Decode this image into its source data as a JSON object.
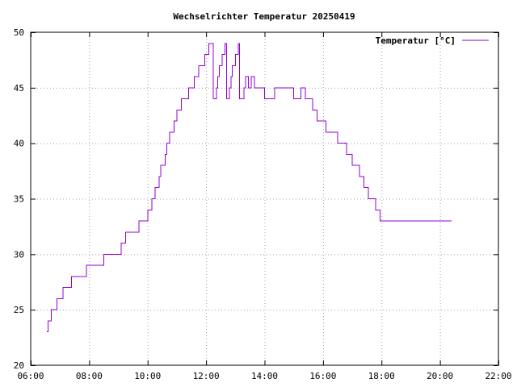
{
  "colors": {
    "series": "#9400d3",
    "grid": "#a0a0a0",
    "axis": "#000000"
  },
  "chart_data": {
    "type": "line",
    "title": "Wechselrichter Temperatur 20250419",
    "xlabel": "",
    "ylabel": "",
    "x_unit": "time of day (hours)",
    "xlim": [
      6,
      22
    ],
    "ylim": [
      20,
      50
    ],
    "x_ticks": [
      6,
      8,
      10,
      12,
      14,
      16,
      18,
      20,
      22
    ],
    "x_tick_labels": [
      "06:00",
      "08:00",
      "10:00",
      "12:00",
      "14:00",
      "16:00",
      "18:00",
      "20:00",
      "22:00"
    ],
    "y_ticks": [
      20,
      25,
      30,
      35,
      40,
      45,
      50
    ],
    "y_tick_labels": [
      "20",
      "25",
      "30",
      "35",
      "40",
      "45",
      "50"
    ],
    "grid": true,
    "legend_position": "top-right",
    "series": [
      {
        "name": "Temperatur [°C]",
        "step": true,
        "x": [
          6.55,
          6.6,
          6.65,
          6.7,
          6.8,
          6.9,
          7.1,
          7.4,
          7.9,
          8.5,
          9.1,
          9.25,
          9.7,
          10.0,
          10.15,
          10.25,
          10.3,
          10.4,
          10.45,
          10.55,
          10.6,
          10.65,
          10.7,
          10.75,
          10.8,
          10.9,
          11.0,
          11.15,
          11.3,
          11.4,
          11.6,
          11.75,
          11.85,
          11.95,
          12.0,
          12.1,
          12.25,
          12.3,
          12.35,
          12.4,
          12.45,
          12.5,
          12.55,
          12.6,
          12.65,
          12.7,
          12.75,
          12.8,
          12.85,
          12.9,
          12.95,
          13.0,
          13.05,
          13.1,
          13.15,
          13.25,
          13.3,
          13.35,
          13.4,
          13.45,
          13.5,
          13.55,
          13.65,
          13.75,
          14.0,
          14.2,
          14.35,
          14.4,
          15.0,
          15.1,
          15.25,
          15.3,
          15.4,
          15.55,
          15.65,
          15.8,
          16.1,
          16.5,
          16.8,
          17.0,
          17.25,
          17.4,
          17.55,
          17.8,
          17.95,
          18.25,
          18.9,
          19.85,
          20.4
        ],
        "y": [
          23,
          24,
          24,
          25,
          25,
          26,
          27,
          28,
          29,
          30,
          31,
          32,
          33,
          34,
          35,
          36,
          36,
          37,
          38,
          38,
          39,
          40,
          40,
          41,
          41,
          42,
          43,
          44,
          44,
          45,
          46,
          47,
          47,
          48,
          48,
          49,
          44,
          44,
          45,
          46,
          47,
          47,
          48,
          48,
          49,
          44,
          44,
          45,
          46,
          47,
          47,
          48,
          48,
          49,
          44,
          44,
          45,
          46,
          46,
          45,
          45,
          46,
          45,
          45,
          44,
          44,
          45,
          45,
          44,
          44,
          45,
          45,
          44,
          44,
          43,
          42,
          41,
          40,
          39,
          38,
          37,
          36,
          35,
          34,
          33,
          33,
          33,
          33,
          33
        ]
      }
    ]
  }
}
